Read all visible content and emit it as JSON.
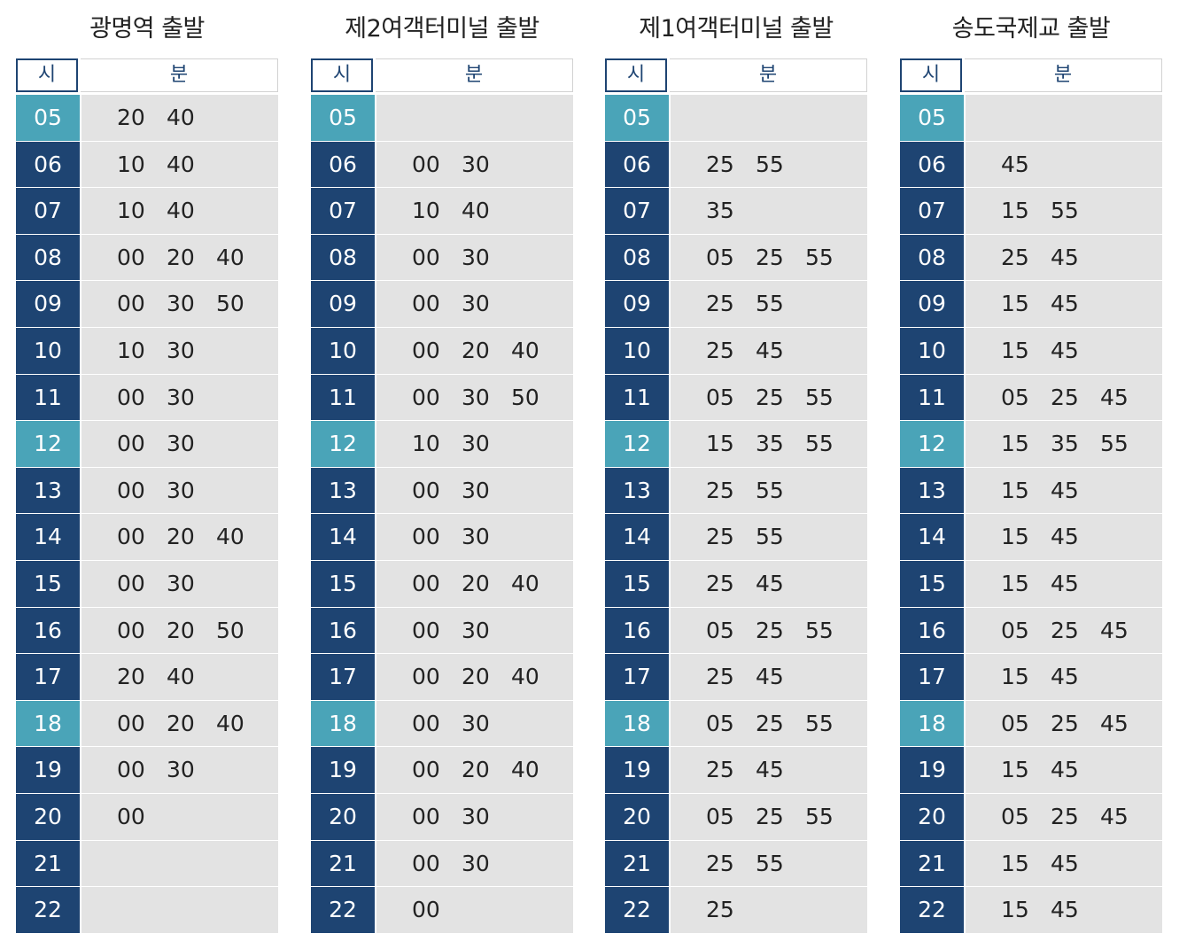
{
  "timetables": [
    {
      "title": "광명역 출발",
      "hour_header": "시",
      "minute_header": "분",
      "rows": [
        {
          "hour": "05",
          "minutes": [
            "20",
            "40"
          ],
          "highlight": true
        },
        {
          "hour": "06",
          "minutes": [
            "10",
            "40"
          ],
          "highlight": false
        },
        {
          "hour": "07",
          "minutes": [
            "10",
            "40"
          ],
          "highlight": false
        },
        {
          "hour": "08",
          "minutes": [
            "00",
            "20",
            "40"
          ],
          "highlight": false
        },
        {
          "hour": "09",
          "minutes": [
            "00",
            "30",
            "50"
          ],
          "highlight": false
        },
        {
          "hour": "10",
          "minutes": [
            "10",
            "30"
          ],
          "highlight": false
        },
        {
          "hour": "11",
          "minutes": [
            "00",
            "30"
          ],
          "highlight": false
        },
        {
          "hour": "12",
          "minutes": [
            "00",
            "30"
          ],
          "highlight": true
        },
        {
          "hour": "13",
          "minutes": [
            "00",
            "30"
          ],
          "highlight": false
        },
        {
          "hour": "14",
          "minutes": [
            "00",
            "20",
            "40"
          ],
          "highlight": false
        },
        {
          "hour": "15",
          "minutes": [
            "00",
            "30"
          ],
          "highlight": false
        },
        {
          "hour": "16",
          "minutes": [
            "00",
            "20",
            "50"
          ],
          "highlight": false
        },
        {
          "hour": "17",
          "minutes": [
            "20",
            "40"
          ],
          "highlight": false
        },
        {
          "hour": "18",
          "minutes": [
            "00",
            "20",
            "40"
          ],
          "highlight": true
        },
        {
          "hour": "19",
          "minutes": [
            "00",
            "30"
          ],
          "highlight": false
        },
        {
          "hour": "20",
          "minutes": [
            "00"
          ],
          "highlight": false
        },
        {
          "hour": "21",
          "minutes": [],
          "highlight": false
        },
        {
          "hour": "22",
          "minutes": [],
          "highlight": false
        }
      ]
    },
    {
      "title": "제2여객터미널 출발",
      "hour_header": "시",
      "minute_header": "분",
      "rows": [
        {
          "hour": "05",
          "minutes": [],
          "highlight": true
        },
        {
          "hour": "06",
          "minutes": [
            "00",
            "30"
          ],
          "highlight": false
        },
        {
          "hour": "07",
          "minutes": [
            "10",
            "40"
          ],
          "highlight": false
        },
        {
          "hour": "08",
          "minutes": [
            "00",
            "30"
          ],
          "highlight": false
        },
        {
          "hour": "09",
          "minutes": [
            "00",
            "30"
          ],
          "highlight": false
        },
        {
          "hour": "10",
          "minutes": [
            "00",
            "20",
            "40"
          ],
          "highlight": false
        },
        {
          "hour": "11",
          "minutes": [
            "00",
            "30",
            "50"
          ],
          "highlight": false
        },
        {
          "hour": "12",
          "minutes": [
            "10",
            "30"
          ],
          "highlight": true
        },
        {
          "hour": "13",
          "minutes": [
            "00",
            "30"
          ],
          "highlight": false
        },
        {
          "hour": "14",
          "minutes": [
            "00",
            "30"
          ],
          "highlight": false
        },
        {
          "hour": "15",
          "minutes": [
            "00",
            "20",
            "40"
          ],
          "highlight": false
        },
        {
          "hour": "16",
          "minutes": [
            "00",
            "30"
          ],
          "highlight": false
        },
        {
          "hour": "17",
          "minutes": [
            "00",
            "20",
            "40"
          ],
          "highlight": false
        },
        {
          "hour": "18",
          "minutes": [
            "00",
            "30"
          ],
          "highlight": true
        },
        {
          "hour": "19",
          "minutes": [
            "00",
            "20",
            "40"
          ],
          "highlight": false
        },
        {
          "hour": "20",
          "minutes": [
            "00",
            "30"
          ],
          "highlight": false
        },
        {
          "hour": "21",
          "minutes": [
            "00",
            "30"
          ],
          "highlight": false
        },
        {
          "hour": "22",
          "minutes": [
            "00"
          ],
          "highlight": false
        }
      ]
    },
    {
      "title": "제1여객터미널 출발",
      "hour_header": "시",
      "minute_header": "분",
      "rows": [
        {
          "hour": "05",
          "minutes": [],
          "highlight": true
        },
        {
          "hour": "06",
          "minutes": [
            "25",
            "55"
          ],
          "highlight": false
        },
        {
          "hour": "07",
          "minutes": [
            "35"
          ],
          "highlight": false
        },
        {
          "hour": "08",
          "minutes": [
            "05",
            "25",
            "55"
          ],
          "highlight": false
        },
        {
          "hour": "09",
          "minutes": [
            "25",
            "55"
          ],
          "highlight": false
        },
        {
          "hour": "10",
          "minutes": [
            "25",
            "45"
          ],
          "highlight": false
        },
        {
          "hour": "11",
          "minutes": [
            "05",
            "25",
            "55"
          ],
          "highlight": false
        },
        {
          "hour": "12",
          "minutes": [
            "15",
            "35",
            "55"
          ],
          "highlight": true
        },
        {
          "hour": "13",
          "minutes": [
            "25",
            "55"
          ],
          "highlight": false
        },
        {
          "hour": "14",
          "minutes": [
            "25",
            "55"
          ],
          "highlight": false
        },
        {
          "hour": "15",
          "minutes": [
            "25",
            "45"
          ],
          "highlight": false
        },
        {
          "hour": "16",
          "minutes": [
            "05",
            "25",
            "55"
          ],
          "highlight": false
        },
        {
          "hour": "17",
          "minutes": [
            "25",
            "45"
          ],
          "highlight": false
        },
        {
          "hour": "18",
          "minutes": [
            "05",
            "25",
            "55"
          ],
          "highlight": true
        },
        {
          "hour": "19",
          "minutes": [
            "25",
            "45"
          ],
          "highlight": false
        },
        {
          "hour": "20",
          "minutes": [
            "05",
            "25",
            "55"
          ],
          "highlight": false
        },
        {
          "hour": "21",
          "minutes": [
            "25",
            "55"
          ],
          "highlight": false
        },
        {
          "hour": "22",
          "minutes": [
            "25"
          ],
          "highlight": false
        }
      ]
    },
    {
      "title": "송도국제교 출발",
      "hour_header": "시",
      "minute_header": "분",
      "rows": [
        {
          "hour": "05",
          "minutes": [],
          "highlight": true
        },
        {
          "hour": "06",
          "minutes": [
            "45"
          ],
          "highlight": false
        },
        {
          "hour": "07",
          "minutes": [
            "15",
            "55"
          ],
          "highlight": false
        },
        {
          "hour": "08",
          "minutes": [
            "25",
            "45"
          ],
          "highlight": false
        },
        {
          "hour": "09",
          "minutes": [
            "15",
            "45"
          ],
          "highlight": false
        },
        {
          "hour": "10",
          "minutes": [
            "15",
            "45"
          ],
          "highlight": false
        },
        {
          "hour": "11",
          "minutes": [
            "05",
            "25",
            "45"
          ],
          "highlight": false
        },
        {
          "hour": "12",
          "minutes": [
            "15",
            "35",
            "55"
          ],
          "highlight": true
        },
        {
          "hour": "13",
          "minutes": [
            "15",
            "45"
          ],
          "highlight": false
        },
        {
          "hour": "14",
          "minutes": [
            "15",
            "45"
          ],
          "highlight": false
        },
        {
          "hour": "15",
          "minutes": [
            "15",
            "45"
          ],
          "highlight": false
        },
        {
          "hour": "16",
          "minutes": [
            "05",
            "25",
            "45"
          ],
          "highlight": false
        },
        {
          "hour": "17",
          "minutes": [
            "15",
            "45"
          ],
          "highlight": false
        },
        {
          "hour": "18",
          "minutes": [
            "05",
            "25",
            "45"
          ],
          "highlight": true
        },
        {
          "hour": "19",
          "minutes": [
            "15",
            "45"
          ],
          "highlight": false
        },
        {
          "hour": "20",
          "minutes": [
            "05",
            "25",
            "45"
          ],
          "highlight": false
        },
        {
          "hour": "21",
          "minutes": [
            "15",
            "45"
          ],
          "highlight": false
        },
        {
          "hour": "22",
          "minutes": [
            "15",
            "45"
          ],
          "highlight": false
        }
      ]
    }
  ],
  "colors": {
    "hour_dark": "#1e4472",
    "hour_highlight": "#4aa4b8",
    "minute_bg": "#e3e3e3"
  }
}
